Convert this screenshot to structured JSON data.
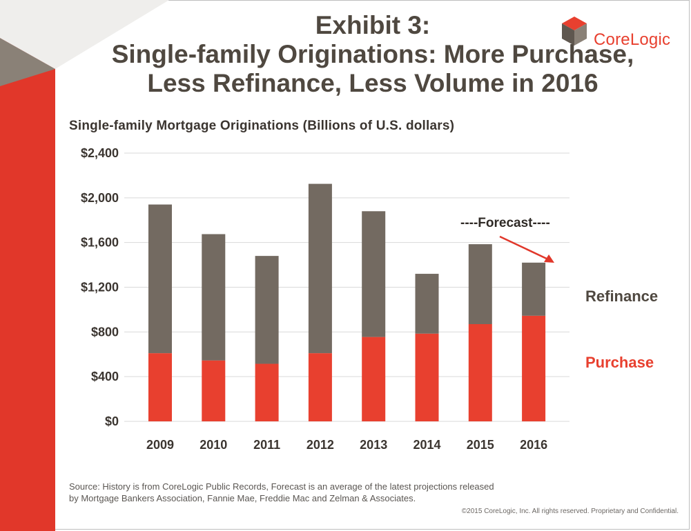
{
  "header": {
    "title_lines": [
      "Exhibit 3:",
      "Single-family Originations:  More Purchase,",
      "Less Refinance, Less Volume in 2016"
    ],
    "logo_text": "CoreLogic",
    "logo_mark": "registered"
  },
  "colors": {
    "refinance": "#736a61",
    "purchase": "#e8402f",
    "accent_red": "#e1372a",
    "accent_gray": "#8a8177",
    "text_dark": "#4f4840"
  },
  "chart_data": {
    "type": "bar",
    "stacked": true,
    "title": "Single-family Mortgage Originations (Billions of U.S. dollars)",
    "categories": [
      "2009",
      "2010",
      "2011",
      "2012",
      "2013",
      "2014",
      "2015",
      "2016"
    ],
    "series": [
      {
        "name": "Purchase",
        "values": [
          610,
          545,
          515,
          610,
          755,
          785,
          870,
          945
        ]
      },
      {
        "name": "Refinance",
        "values": [
          1330,
          1130,
          965,
          1515,
          1125,
          535,
          715,
          475
        ]
      }
    ],
    "totals": [
      1940,
      1675,
      1480,
      2125,
      1880,
      1320,
      1585,
      1420
    ],
    "ylim": [
      0,
      2400
    ],
    "yticks": [
      0,
      400,
      800,
      1200,
      1600,
      2000,
      2400
    ],
    "ytick_labels": [
      "$0",
      "$400",
      "$800",
      "$1,200",
      "$1,600",
      "$2,000",
      "$2,400"
    ],
    "grid": true,
    "legend_placement": "right",
    "annotation": {
      "text": "----Forecast----",
      "points_to": "2016"
    }
  },
  "footer": {
    "source_lines": [
      "Source: History is from CoreLogic Public Records, Forecast is an average of the latest projections released",
      "by Mortgage Bankers Association, Fannie Mae, Freddie Mac and Zelman & Associates."
    ],
    "copyright": "©2015 CoreLogic, Inc. All rights reserved. Proprietary and Confidential."
  }
}
